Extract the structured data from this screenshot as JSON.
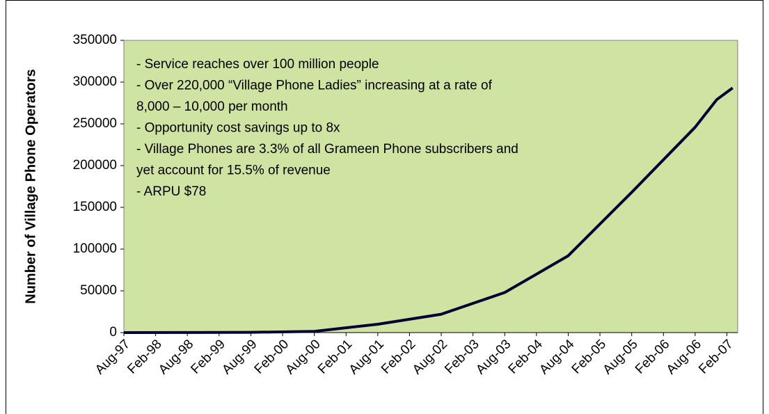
{
  "chart_data": {
    "type": "line",
    "y_label": "Number of Village Phone Operators",
    "annotations": [
      "- Service reaches over 100 million people",
      "- Over 220,000 “Village Phone Ladies” increasing at a rate of",
      "8,000 – 10,000 per month",
      "- Opportunity cost savings up to 8x",
      "- Village Phones are 3.3% of all Grameen Phone subscribers and",
      "yet account for 15.5% of revenue",
      "- ARPU $78"
    ],
    "x": [
      1997.58,
      1998.58,
      1999.58,
      2000.58,
      2001.58,
      2002.58,
      2003.58,
      2004.58,
      2005.58,
      2006.58,
      2006.92,
      2007.17
    ],
    "series": [
      {
        "name": "Village Phone Operators",
        "color": "#000033",
        "values": [
          0,
          100,
          300,
          1500,
          10000,
          22000,
          48000,
          92000,
          168000,
          246000,
          279000,
          293000
        ]
      }
    ],
    "xlim": [
      1997.58,
      2007.25
    ],
    "xticks": [
      {
        "value": 1997.58,
        "label": "Aug-97"
      },
      {
        "value": 1998.08,
        "label": "Feb-98"
      },
      {
        "value": 1998.58,
        "label": "Aug-98"
      },
      {
        "value": 1999.08,
        "label": "Feb-99"
      },
      {
        "value": 1999.58,
        "label": "Aug-99"
      },
      {
        "value": 2000.08,
        "label": "Feb-00"
      },
      {
        "value": 2000.58,
        "label": "Aug-00"
      },
      {
        "value": 2001.08,
        "label": "Feb-01"
      },
      {
        "value": 2001.58,
        "label": "Aug-01"
      },
      {
        "value": 2002.08,
        "label": "Feb-02"
      },
      {
        "value": 2002.58,
        "label": "Aug-02"
      },
      {
        "value": 2003.08,
        "label": "Feb-03"
      },
      {
        "value": 2003.58,
        "label": "Aug-03"
      },
      {
        "value": 2004.08,
        "label": "Feb-04"
      },
      {
        "value": 2004.58,
        "label": "Aug-04"
      },
      {
        "value": 2005.08,
        "label": "Feb-05"
      },
      {
        "value": 2005.58,
        "label": "Aug-05"
      },
      {
        "value": 2006.08,
        "label": "Feb-06"
      },
      {
        "value": 2006.58,
        "label": "Aug-06"
      },
      {
        "value": 2007.08,
        "label": "Feb-07"
      }
    ],
    "ylim": [
      0,
      350000
    ],
    "yticks": [
      0,
      50000,
      100000,
      150000,
      200000,
      250000,
      300000,
      350000
    ],
    "plot_background": "#cfe3a3"
  }
}
